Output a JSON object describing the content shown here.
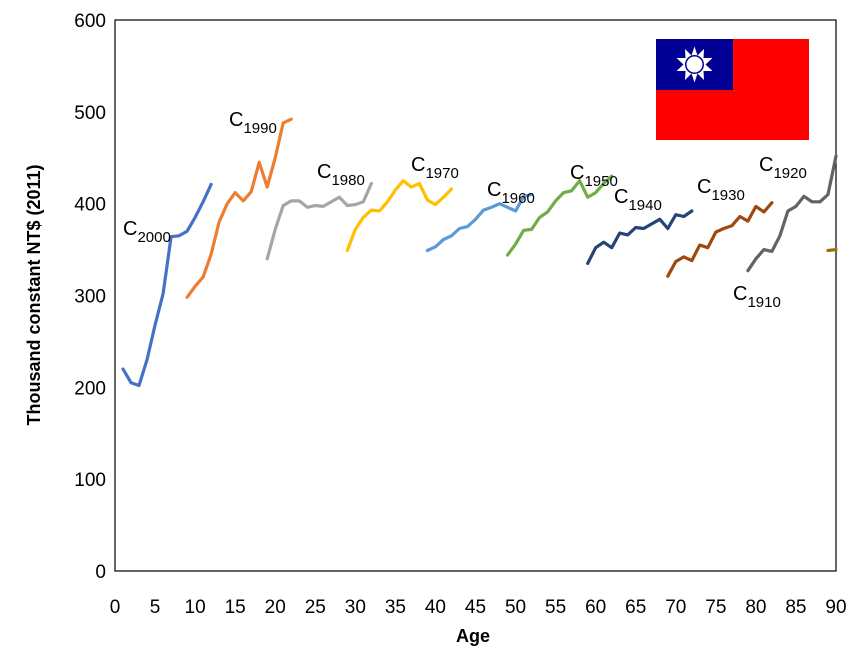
{
  "chart_data": {
    "type": "line",
    "title": "",
    "xlabel": "Age",
    "ylabel": "Thousand constant NT$ (2011)",
    "xlim": [
      0,
      90
    ],
    "ylim": [
      0,
      600
    ],
    "x_ticks": [
      0,
      5,
      10,
      15,
      20,
      25,
      30,
      35,
      40,
      45,
      50,
      55,
      60,
      65,
      70,
      75,
      80,
      85,
      90
    ],
    "y_ticks": [
      0,
      100,
      200,
      300,
      400,
      500,
      600
    ],
    "grid": false,
    "legend": "none (cohort labels placed next to lines)",
    "series": [
      {
        "name": "C2000",
        "label_main": "C",
        "label_sub": "2000",
        "color": "#4472C4",
        "x": [
          1,
          2,
          3,
          4,
          5,
          6,
          7,
          8,
          9,
          10,
          11,
          12
        ],
        "values": [
          220,
          205,
          202,
          230,
          268,
          302,
          364,
          365,
          370,
          385,
          402,
          421
        ]
      },
      {
        "name": "C1990",
        "label_main": "C",
        "label_sub": "1990",
        "color": "#ED7D31",
        "x": [
          9,
          10,
          11,
          12,
          13,
          14,
          15,
          16,
          17,
          18,
          19,
          20,
          21,
          22
        ],
        "values": [
          298,
          310,
          320,
          345,
          380,
          400,
          412,
          403,
          413,
          445,
          418,
          450,
          488,
          492
        ]
      },
      {
        "name": "C1980",
        "label_main": "C",
        "label_sub": "1980",
        "color": "#A5A5A5",
        "x": [
          19,
          20,
          21,
          22,
          23,
          24,
          25,
          26,
          27,
          28,
          29,
          30,
          31,
          32
        ],
        "values": [
          340,
          372,
          398,
          403,
          403,
          396,
          398,
          397,
          402,
          407,
          398,
          399,
          402,
          422
        ]
      },
      {
        "name": "C1970",
        "label_main": "C",
        "label_sub": "1970",
        "color": "#FFC000",
        "x": [
          29,
          30,
          31,
          32,
          33,
          34,
          35,
          36,
          37,
          38,
          39,
          40,
          41,
          42
        ],
        "values": [
          349,
          372,
          385,
          393,
          392,
          402,
          415,
          425,
          418,
          422,
          404,
          399,
          407,
          416
        ]
      },
      {
        "name": "C1960",
        "label_main": "C",
        "label_sub": "1960",
        "color": "#5B9BD5",
        "x": [
          39,
          40,
          41,
          42,
          43,
          44,
          45,
          46,
          47,
          48,
          49,
          50,
          51,
          52
        ],
        "values": [
          349,
          353,
          361,
          365,
          373,
          375,
          383,
          393,
          396,
          400,
          396,
          392,
          408,
          410
        ]
      },
      {
        "name": "C1950",
        "label_main": "C",
        "label_sub": "1950",
        "color": "#70AD47",
        "x": [
          49,
          50,
          51,
          52,
          53,
          54,
          55,
          56,
          57,
          58,
          59,
          60,
          61,
          62
        ],
        "values": [
          344,
          356,
          371,
          372,
          385,
          391,
          403,
          412,
          414,
          425,
          407,
          412,
          422,
          430
        ]
      },
      {
        "name": "C1940",
        "label_main": "C",
        "label_sub": "1940",
        "color": "#264478",
        "x": [
          59,
          60,
          61,
          62,
          63,
          64,
          65,
          66,
          67,
          68,
          69,
          70,
          71,
          72
        ],
        "values": [
          335,
          352,
          358,
          352,
          368,
          366,
          374,
          373,
          378,
          383,
          373,
          388,
          386,
          392
        ]
      },
      {
        "name": "C1930",
        "label_main": "C",
        "label_sub": "1930",
        "color": "#9E480E",
        "x": [
          69,
          70,
          71,
          72,
          73,
          74,
          75,
          76,
          77,
          78,
          79,
          80,
          81,
          82
        ],
        "values": [
          321,
          337,
          342,
          338,
          355,
          352,
          369,
          373,
          376,
          386,
          381,
          397,
          391,
          401
        ]
      },
      {
        "name": "C1920",
        "label_main": "C",
        "label_sub": "1920",
        "color": "#636363",
        "x": [
          79,
          80,
          81,
          82,
          83,
          84,
          85,
          86,
          87,
          88,
          89,
          90
        ],
        "values": [
          327,
          340,
          350,
          348,
          365,
          392,
          397,
          408,
          402,
          402,
          410,
          452
        ]
      },
      {
        "name": "C1910",
        "label_main": "C",
        "label_sub": "1910",
        "color": "#997300",
        "x": [
          89,
          90
        ],
        "values": [
          349,
          350
        ]
      }
    ]
  }
}
